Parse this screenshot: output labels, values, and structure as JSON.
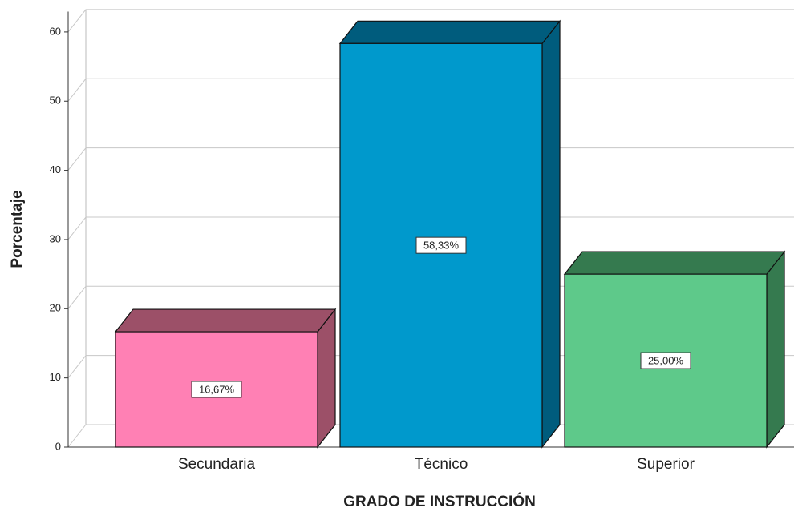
{
  "chart_data": {
    "type": "bar3d",
    "x_label": "GRADO DE INSTRUCCIÓN",
    "y_label": "Porcentaje",
    "categories": [
      "Secundaria",
      "Técnico",
      "Superior"
    ],
    "values": [
      16.67,
      58.33,
      25.0
    ],
    "value_labels": [
      "16,67%",
      "58,33%",
      "25,00%"
    ],
    "colors": [
      "#ff80b4",
      "#0099cc",
      "#5ec98a"
    ],
    "shade_colors": [
      "#9c5068",
      "#005c7d",
      "#357a4f"
    ],
    "ylim": [
      0,
      63
    ],
    "yticks": [
      0,
      10,
      20,
      30,
      40,
      50,
      60
    ],
    "grid": true
  }
}
